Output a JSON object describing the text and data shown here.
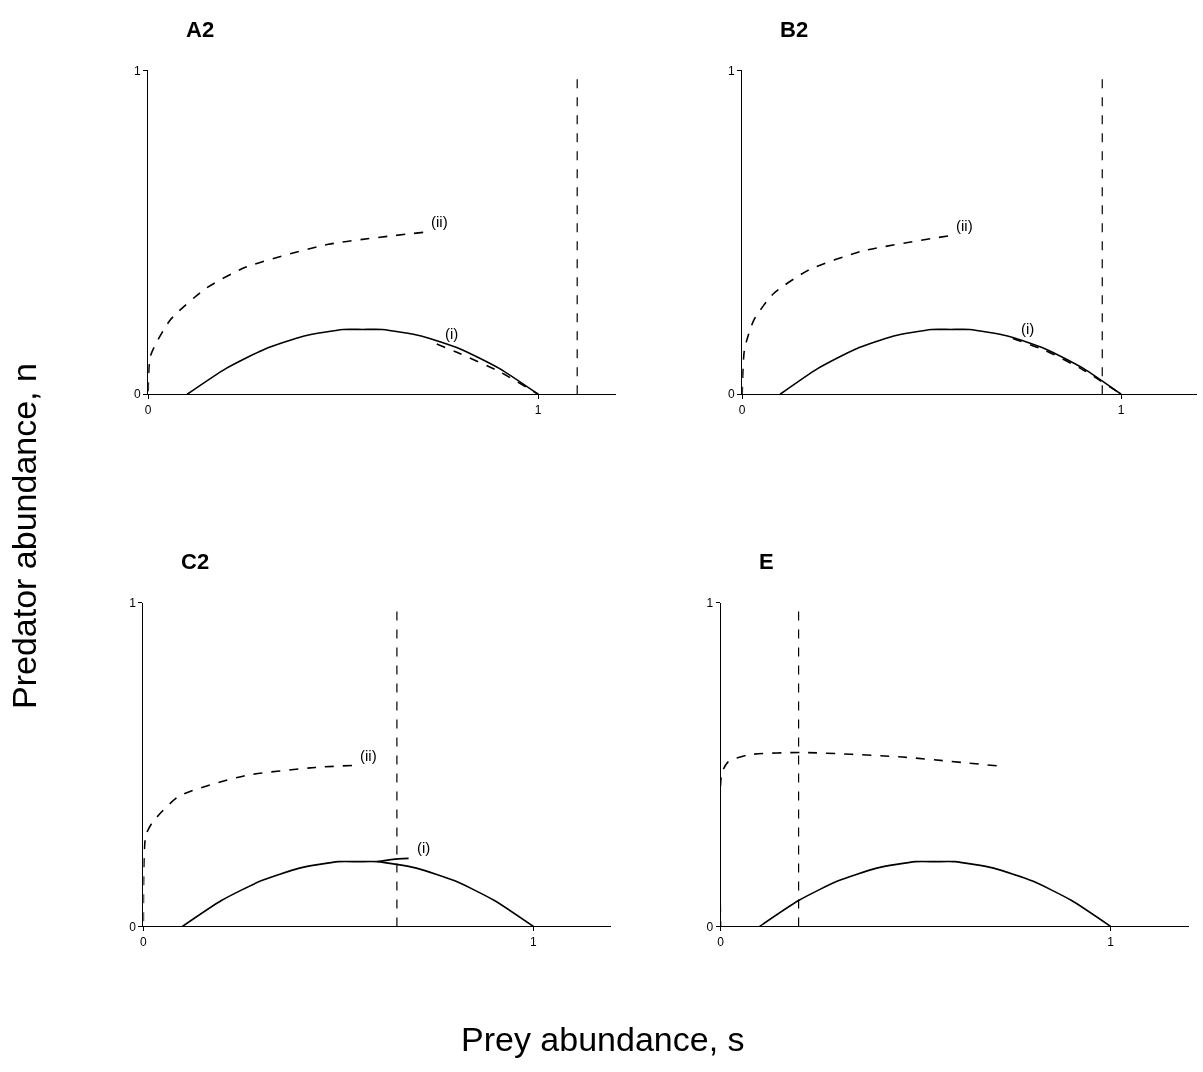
{
  "chart_data": [
    {
      "type": "line",
      "title": "A2",
      "ylabel": "Predator abundance, n",
      "xlim": [
        0,
        1.2
      ],
      "ylim": [
        0,
        1
      ],
      "xticks": [
        0,
        1
      ],
      "yticks": [
        0,
        1
      ],
      "series": [
        {
          "color": "#000000",
          "line_style": "solid",
          "x": [
            0.1,
            0.2,
            0.3,
            0.4,
            0.5,
            0.55,
            0.6,
            0.7,
            0.8,
            0.9,
            1.0
          ],
          "values": [
            0,
            0.08,
            0.14,
            0.18,
            0.2,
            0.2,
            0.2,
            0.18,
            0.14,
            0.08,
            0
          ]
        },
        {
          "color": "#000000",
          "line_style": "dashed",
          "x": [
            0.705,
            0.462,
            0.249,
            0.147,
            0.057,
            0.006,
            0
          ],
          "values": [
            0.5,
            0.463,
            0.392,
            0.326,
            0.23,
            0.119,
            0
          ]
        },
        {
          "color": "#000000",
          "line_style": "dashed",
          "x": [
            0.74,
            0.8,
            0.9,
            1.0
          ],
          "values": [
            0.155,
            0.125,
            0.07,
            0
          ]
        }
      ],
      "ref_lines": [
        {
          "axis": "x",
          "value": 1.1,
          "color": "#000000",
          "line_style": "dashed"
        }
      ],
      "annotations": [
        {
          "text": "(ii)",
          "x": 0.705,
          "y": 0.5
        },
        {
          "text": "(i)",
          "x": 0.74,
          "y": 0.155
        }
      ]
    },
    {
      "type": "line",
      "title": "B2",
      "xlim": [
        0,
        1.2
      ],
      "ylim": [
        0,
        1
      ],
      "xticks": [
        0,
        1
      ],
      "yticks": [
        0,
        1
      ],
      "series": [
        {
          "color": "#000000",
          "line_style": "solid",
          "x": [
            0.1,
            0.2,
            0.3,
            0.4,
            0.5,
            0.55,
            0.6,
            0.7,
            0.8,
            0.9,
            1.0
          ],
          "values": [
            0,
            0.08,
            0.14,
            0.18,
            0.2,
            0.2,
            0.2,
            0.18,
            0.14,
            0.08,
            0
          ]
        },
        {
          "color": "#000000",
          "line_style": "dashed",
          "x": [
            0.543,
            0.313,
            0.176,
            0.083,
            0.031,
            0.006,
            0
          ],
          "values": [
            0.489,
            0.441,
            0.384,
            0.311,
            0.23,
            0.138,
            0
          ]
        },
        {
          "color": "#000000",
          "line_style": "dashed",
          "x": [
            0.714,
            0.8,
            0.9,
            1.0
          ],
          "values": [
            0.172,
            0.135,
            0.075,
            0
          ]
        }
      ],
      "ref_lines": [
        {
          "axis": "x",
          "value": 0.95,
          "color": "#000000",
          "line_style": "dashed"
        }
      ],
      "annotations": [
        {
          "text": "(ii)",
          "x": 0.543,
          "y": 0.489
        },
        {
          "text": "(i)",
          "x": 0.714,
          "y": 0.172
        }
      ]
    },
    {
      "type": "line",
      "title": "C2",
      "xlabel": "Prey abundance, s",
      "xlim": [
        0,
        1.2
      ],
      "ylim": [
        0,
        1
      ],
      "xticks": [
        0,
        1
      ],
      "yticks": [
        0,
        1
      ],
      "series": [
        {
          "color": "#000000",
          "line_style": "solid",
          "x": [
            0.1,
            0.2,
            0.3,
            0.4,
            0.5,
            0.55,
            0.6,
            0.7,
            0.8,
            0.9,
            1.0
          ],
          "values": [
            0,
            0.08,
            0.14,
            0.18,
            0.2,
            0.2,
            0.2,
            0.18,
            0.14,
            0.08,
            0
          ]
        },
        {
          "color": "#000000",
          "line_style": "dashed",
          "x": [
            0.535,
            0.441,
            0.262,
            0.091,
            0.023,
            0.006,
            0
          ],
          "values": [
            0.497,
            0.491,
            0.466,
            0.402,
            0.321,
            0.28,
            0
          ]
        },
        {
          "color": "#000000",
          "line_style": "solid",
          "x": [
            0.68,
            0.64,
            0.6
          ],
          "values": [
            0.21,
            0.207,
            0.2
          ]
        }
      ],
      "ref_lines": [
        {
          "axis": "x",
          "value": 0.65,
          "color": "#000000",
          "line_style": "dashed"
        }
      ],
      "annotations": [
        {
          "text": "(ii)",
          "x": 0.535,
          "y": 0.497
        },
        {
          "text": "(i)",
          "x": 0.68,
          "y": 0.21
        }
      ]
    },
    {
      "type": "line",
      "title": "E",
      "xlim": [
        0,
        1.2
      ],
      "ylim": [
        0,
        1
      ],
      "xticks": [
        0,
        1
      ],
      "yticks": [
        0,
        1
      ],
      "series": [
        {
          "color": "#000000",
          "line_style": "solid",
          "x": [
            0.1,
            0.2,
            0.3,
            0.4,
            0.5,
            0.55,
            0.6,
            0.7,
            0.8,
            0.9,
            1.0
          ],
          "values": [
            0,
            0.08,
            0.14,
            0.18,
            0.2,
            0.2,
            0.2,
            0.18,
            0.14,
            0.08,
            0
          ]
        },
        {
          "color": "#000000",
          "line_style": "dashed",
          "x": [
            0.708,
            0.456,
            0.208,
            0.071,
            0.02,
            0.003,
            0
          ],
          "values": [
            0.496,
            0.524,
            0.537,
            0.53,
            0.509,
            0.473,
            0
          ]
        }
      ],
      "ref_lines": [
        {
          "axis": "x",
          "value": 0.2,
          "color": "#000000",
          "line_style": "dashed"
        }
      ]
    }
  ]
}
